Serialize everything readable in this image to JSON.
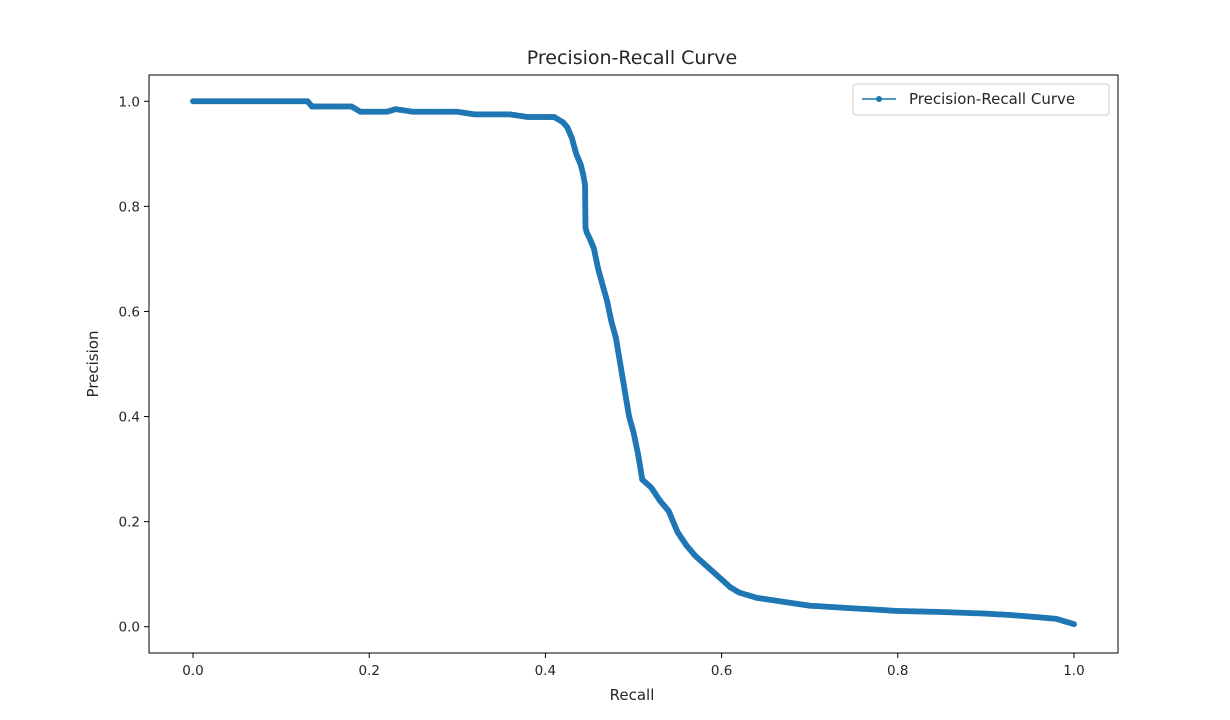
{
  "chart_data": {
    "type": "line",
    "title": "Precision-Recall Curve",
    "xlabel": "Recall",
    "ylabel": "Precision",
    "xlim": [
      -0.05,
      1.05
    ],
    "ylim": [
      -0.05,
      1.05
    ],
    "xticks": [
      0.0,
      0.2,
      0.4,
      0.6,
      0.8,
      1.0
    ],
    "xtick_labels": [
      "0.0",
      "0.2",
      "0.4",
      "0.6",
      "0.8",
      "1.0"
    ],
    "yticks": [
      0.0,
      0.2,
      0.4,
      0.6,
      0.8,
      1.0
    ],
    "ytick_labels": [
      "0.0",
      "0.2",
      "0.4",
      "0.6",
      "0.8",
      "1.0"
    ],
    "grid": false,
    "legend": {
      "placement": "upper-right",
      "entries": [
        "Precision-Recall Curve"
      ]
    },
    "series": [
      {
        "name": "Precision-Recall Curve",
        "color": "#1f77b4",
        "marker": "dot",
        "x": [
          0.0,
          0.02,
          0.05,
          0.08,
          0.1,
          0.12,
          0.13,
          0.135,
          0.14,
          0.16,
          0.18,
          0.19,
          0.2,
          0.22,
          0.23,
          0.25,
          0.28,
          0.3,
          0.32,
          0.34,
          0.36,
          0.38,
          0.4,
          0.41,
          0.42,
          0.425,
          0.43,
          0.435,
          0.44,
          0.443,
          0.445,
          0.4455,
          0.447,
          0.45,
          0.455,
          0.46,
          0.465,
          0.47,
          0.475,
          0.48,
          0.485,
          0.49,
          0.495,
          0.5,
          0.505,
          0.51,
          0.52,
          0.53,
          0.54,
          0.545,
          0.55,
          0.56,
          0.57,
          0.58,
          0.59,
          0.6,
          0.61,
          0.62,
          0.64,
          0.66,
          0.68,
          0.7,
          0.72,
          0.75,
          0.78,
          0.8,
          0.85,
          0.9,
          0.93,
          0.96,
          0.98,
          0.99,
          1.0
        ],
        "y": [
          1.0,
          1.0,
          1.0,
          1.0,
          1.0,
          1.0,
          1.0,
          0.99,
          0.99,
          0.99,
          0.99,
          0.98,
          0.98,
          0.98,
          0.985,
          0.98,
          0.98,
          0.98,
          0.975,
          0.975,
          0.975,
          0.97,
          0.97,
          0.97,
          0.96,
          0.95,
          0.93,
          0.9,
          0.88,
          0.86,
          0.84,
          0.76,
          0.75,
          0.74,
          0.72,
          0.68,
          0.65,
          0.62,
          0.58,
          0.55,
          0.5,
          0.45,
          0.4,
          0.37,
          0.33,
          0.28,
          0.265,
          0.24,
          0.22,
          0.2,
          0.18,
          0.155,
          0.135,
          0.12,
          0.105,
          0.09,
          0.075,
          0.065,
          0.055,
          0.05,
          0.045,
          0.04,
          0.038,
          0.035,
          0.032,
          0.03,
          0.028,
          0.025,
          0.022,
          0.018,
          0.015,
          0.01,
          0.005
        ]
      }
    ]
  }
}
